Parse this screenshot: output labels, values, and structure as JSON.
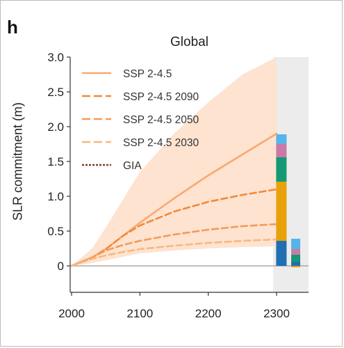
{
  "panel_letter": "h",
  "colors": {
    "ssp245": "#f7a870",
    "ssp245_2090": "#f08a3a",
    "ssp245_2050": "#f59a5a",
    "ssp245_2030": "#f8b880",
    "gia": "#7a3f2a",
    "band": "#fde3d0",
    "shade": "#ececec"
  },
  "chart_data": {
    "type": "line",
    "title": "Global",
    "xlabel": "",
    "ylabel": "SLR commitment (m)",
    "xlim": [
      2000,
      2345
    ],
    "ylim": [
      -0.4,
      3.0
    ],
    "xticks": [
      "2000",
      "2100",
      "2200",
      "2300"
    ],
    "yticks": [
      "3.0",
      "2.5",
      "2.0",
      "1.5",
      "1.0",
      "0.5",
      "0"
    ],
    "shaded_region": [
      2295,
      2345
    ],
    "grid": false,
    "legend_position": "top-left",
    "series": [
      {
        "name": "SSP 2-4.5",
        "style": "solid",
        "color": "#f7a870",
        "x": [
          2000,
          2030,
          2050,
          2075,
          2100,
          2150,
          2200,
          2250,
          2300
        ],
        "y": [
          0,
          0.12,
          0.24,
          0.43,
          0.62,
          0.97,
          1.3,
          1.6,
          1.9
        ]
      },
      {
        "name": "SSP 2-4.5 2090",
        "style": "dashed",
        "color": "#f08a3a",
        "x": [
          2000,
          2030,
          2050,
          2075,
          2100,
          2150,
          2200,
          2250,
          2300
        ],
        "y": [
          0,
          0.12,
          0.24,
          0.43,
          0.58,
          0.78,
          0.92,
          1.02,
          1.1
        ]
      },
      {
        "name": "SSP 2-4.5 2050",
        "style": "dashed",
        "color": "#f59a5a",
        "x": [
          2000,
          2030,
          2050,
          2075,
          2100,
          2150,
          2200,
          2250,
          2300
        ],
        "y": [
          0,
          0.12,
          0.22,
          0.3,
          0.36,
          0.45,
          0.52,
          0.57,
          0.6
        ]
      },
      {
        "name": "SSP 2-4.5 2030",
        "style": "dashed",
        "color": "#f8b880",
        "x": [
          2000,
          2030,
          2050,
          2075,
          2100,
          2150,
          2200,
          2250,
          2300
        ],
        "y": [
          0,
          0.1,
          0.15,
          0.2,
          0.24,
          0.29,
          0.33,
          0.36,
          0.38
        ]
      },
      {
        "name": "GIA",
        "style": "dotted",
        "color": "#7a3f2a",
        "x": [],
        "y": []
      }
    ],
    "uncertainty_band": {
      "series": "SSP 2-4.5",
      "x": [
        2000,
        2030,
        2050,
        2075,
        2100,
        2150,
        2200,
        2250,
        2300
      ],
      "lower": [
        0,
        0.04,
        0.08,
        0.13,
        0.18,
        0.22,
        0.25,
        0.27,
        0.28
      ],
      "upper": [
        0,
        0.25,
        0.55,
        0.95,
        1.35,
        1.9,
        2.35,
        2.75,
        3.05
      ]
    },
    "stacked_bars": [
      {
        "x": 2307,
        "segments": [
          {
            "color": "#1f6fb2",
            "value": 0.36
          },
          {
            "color": "#e8a10a",
            "value": 0.85
          },
          {
            "color": "#139a74",
            "value": 0.35
          },
          {
            "color": "#cc79a7",
            "value": 0.19
          },
          {
            "color": "#56b4e9",
            "value": 0.14
          }
        ]
      },
      {
        "x": 2328,
        "segments": [
          {
            "color": "#e8a10a",
            "value": -0.02
          },
          {
            "color": "#1f6fb2",
            "value": 0.06
          },
          {
            "color": "#139a74",
            "value": 0.1
          },
          {
            "color": "#cc79a7",
            "value": 0.08
          },
          {
            "color": "#56b4e9",
            "value": 0.15
          }
        ]
      }
    ]
  }
}
